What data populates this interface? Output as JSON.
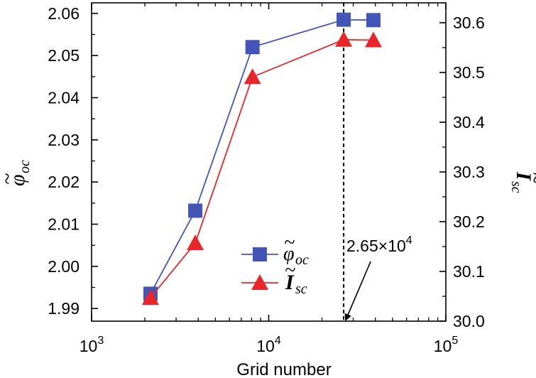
{
  "chart_data": {
    "type": "line",
    "xlabel": "Grid number",
    "xscale": "log",
    "xlim": [
      1000,
      100000
    ],
    "x_ticks": [
      {
        "value": 1000,
        "base": "10",
        "exp": "3"
      },
      {
        "value": 10000,
        "base": "10",
        "exp": "4"
      },
      {
        "value": 100000,
        "base": "10",
        "exp": "5"
      }
    ],
    "y_left": {
      "label_symbol": "φ",
      "label_sub": "oc",
      "lim": [
        1.987,
        2.0625
      ],
      "ticks": [
        1.99,
        2.0,
        2.01,
        2.02,
        2.03,
        2.04,
        2.05,
        2.06
      ],
      "tick_labels": [
        "1.99",
        "2.00",
        "2.01",
        "2.02",
        "2.03",
        "2.04",
        "2.05",
        "2.06"
      ]
    },
    "y_right": {
      "label_symbol": "I",
      "label_sub": "sc",
      "lim": [
        30.0,
        30.64
      ],
      "ticks": [
        30.0,
        30.1,
        30.2,
        30.3,
        30.4,
        30.5,
        30.6
      ],
      "tick_labels": [
        "30.0",
        "30.1",
        "30.2",
        "30.3",
        "30.4",
        "30.5",
        "30.6"
      ]
    },
    "series": [
      {
        "name": "phi_oc",
        "legend_symbol": "φ",
        "legend_sub": "oc",
        "axis": "left",
        "marker": "square",
        "color": "#4455b8",
        "x": [
          2150,
          3850,
          8100,
          26500,
          39000
        ],
        "y": [
          1.9935,
          2.0132,
          2.052,
          2.0585,
          2.0584
        ]
      },
      {
        "name": "I_sc",
        "legend_symbol": "I",
        "legend_sub": "sc",
        "axis": "right",
        "marker": "triangle",
        "color": "#e8262a",
        "x": [
          2150,
          3850,
          8100,
          26500,
          39000
        ],
        "y": [
          30.047,
          30.157,
          30.491,
          30.566,
          30.565
        ]
      }
    ],
    "annotation": {
      "mantissa": "2.65×10",
      "exp": "4",
      "x": 26500
    }
  }
}
